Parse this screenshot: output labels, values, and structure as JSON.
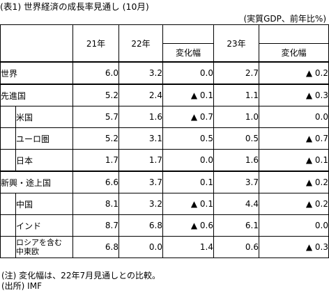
{
  "title": "(表1) 世界経済の成長率見通し (10月)",
  "unit": "(実質GDP、前年比%)",
  "columns": {
    "y21": "21年",
    "y22": "22年",
    "chg22": "変化幅",
    "y23": "23年",
    "chg23": "変化幅"
  },
  "rows": [
    {
      "label": "世界",
      "y21": "6.0",
      "y22": "3.2",
      "chg22": "0.0",
      "y23": "2.7",
      "chg23": "▲ 0.2"
    },
    {
      "label": "先進国",
      "y21": "5.2",
      "y22": "2.4",
      "chg22": "▲ 0.1",
      "y23": "1.1",
      "chg23": "▲ 0.3"
    },
    {
      "label": "米国",
      "y21": "5.7",
      "y22": "1.6",
      "chg22": "▲ 0.7",
      "y23": "1.0",
      "chg23": "0.0"
    },
    {
      "label": "ユーロ圏",
      "y21": "5.2",
      "y22": "3.1",
      "chg22": "0.5",
      "y23": "0.5",
      "chg23": "▲ 0.7"
    },
    {
      "label": "日本",
      "y21": "1.7",
      "y22": "1.7",
      "chg22": "0.0",
      "y23": "1.6",
      "chg23": "▲ 0.1"
    },
    {
      "label": "新興・途上国",
      "y21": "6.6",
      "y22": "3.7",
      "chg22": "0.1",
      "y23": "3.7",
      "chg23": "▲ 0.2"
    },
    {
      "label": "中国",
      "y21": "8.1",
      "y22": "3.2",
      "chg22": "▲ 0.1",
      "y23": "4.4",
      "chg23": "▲ 0.2"
    },
    {
      "label": "インド",
      "y21": "8.7",
      "y22": "6.8",
      "chg22": "▲ 0.6",
      "y23": "6.1",
      "chg23": "0.0"
    },
    {
      "label_line1": "ロシアを含む",
      "label_line2": "中東欧",
      "y21": "6.8",
      "y22": "0.0",
      "chg22": "1.4",
      "y23": "0.6",
      "chg23": "▲ 0.3"
    }
  ],
  "notes": {
    "note": "(注) 変化幅は、22年7月見通しとの比較。",
    "source": "(出所) IMF"
  }
}
